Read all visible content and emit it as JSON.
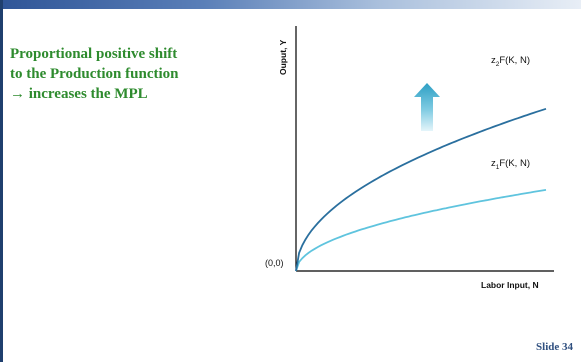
{
  "slide": {
    "caption_lines": [
      "Proportional positive shift",
      "to the Production function",
      "→ increases the MPL"
    ],
    "slide_number": "Slide 34"
  },
  "chart_data": {
    "type": "line",
    "xlabel": "Labor Input, N",
    "ylabel": "Ouput, Y",
    "origin_label": "(0,0)",
    "series": [
      {
        "name": "z₂F(K, N)",
        "name_prefix": "z",
        "name_sub": "2",
        "name_suffix": "F(K, N)",
        "color": "#2a6f9e",
        "scale": 2
      },
      {
        "name": "z₁F(K, N)",
        "name_prefix": "z",
        "name_sub": "1",
        "name_suffix": "F(K, N)",
        "color": "#5fc4de",
        "scale": 1
      }
    ],
    "annotation": {
      "type": "arrow",
      "direction": "up",
      "color": "#35a7c9",
      "meaning": "shift from z1F(K,N) to z2F(K,N)"
    }
  }
}
